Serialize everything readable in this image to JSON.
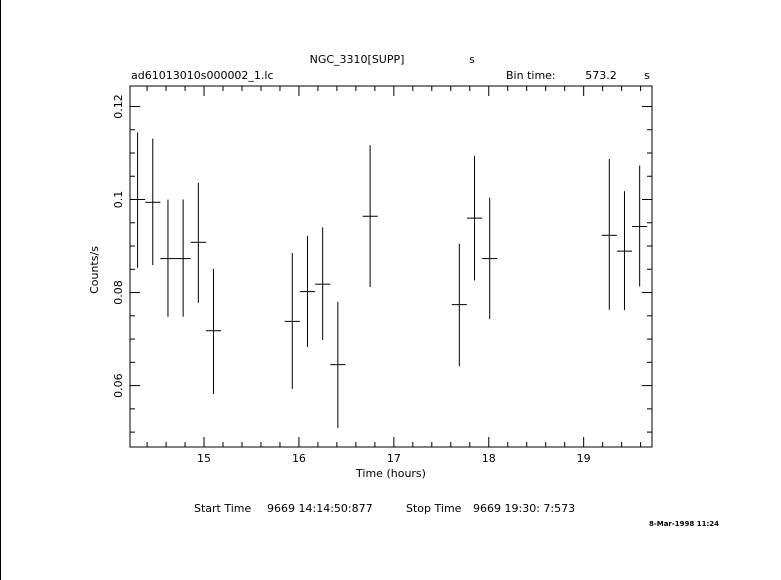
{
  "header": {
    "object": "NGC_3310[SUPP]",
    "object_unit": "s",
    "file": "ad61013010s000002_1.lc",
    "bin_label": "Bin time:",
    "bin_value": "573.2",
    "bin_unit": "s"
  },
  "footer": {
    "start_label": "Start Time",
    "start_value": "9669  14:14:50:877",
    "stop_label": "Stop Time",
    "stop_value": "9669  19:30:  7:573",
    "date": "8-Mar-1998 11:24"
  },
  "chart_data": {
    "type": "scatter",
    "xlabel": "Time (hours)",
    "ylabel": "Counts/s",
    "xlim": [
      14.22,
      19.72
    ],
    "ylim": [
      0.0468,
      0.1244
    ],
    "x_ticks": [
      15,
      16,
      17,
      18,
      19
    ],
    "y_ticks": [
      0.06,
      0.08,
      0.1,
      0.12
    ],
    "x_tick_labels": [
      "15",
      "16",
      "17",
      "18",
      "19"
    ],
    "y_tick_labels": [
      "0.06",
      "0.08",
      "0.1",
      "0.12"
    ],
    "grid": false,
    "points": [
      {
        "x": 14.3,
        "y": 0.1,
        "xerr": 0.08,
        "yerr_low": 0.0853,
        "yerr_high": 0.1144
      },
      {
        "x": 14.46,
        "y": 0.0994,
        "xerr": 0.08,
        "yerr_low": 0.0859,
        "yerr_high": 0.1131
      },
      {
        "x": 14.62,
        "y": 0.0873,
        "xerr": 0.08,
        "yerr_low": 0.0748,
        "yerr_high": 0.1
      },
      {
        "x": 14.78,
        "y": 0.0873,
        "xerr": 0.08,
        "yerr_low": 0.0748,
        "yerr_high": 0.1
      },
      {
        "x": 14.94,
        "y": 0.0908,
        "xerr": 0.08,
        "yerr_low": 0.0778,
        "yerr_high": 0.1036
      },
      {
        "x": 15.1,
        "y": 0.0718,
        "xerr": 0.08,
        "yerr_low": 0.0582,
        "yerr_high": 0.0851
      },
      {
        "x": 15.93,
        "y": 0.0738,
        "xerr": 0.08,
        "yerr_low": 0.0593,
        "yerr_high": 0.0885
      },
      {
        "x": 16.09,
        "y": 0.0802,
        "xerr": 0.08,
        "yerr_low": 0.0683,
        "yerr_high": 0.0922
      },
      {
        "x": 16.25,
        "y": 0.0818,
        "xerr": 0.08,
        "yerr_low": 0.0698,
        "yerr_high": 0.094
      },
      {
        "x": 16.41,
        "y": 0.0645,
        "xerr": 0.08,
        "yerr_low": 0.0509,
        "yerr_high": 0.078
      },
      {
        "x": 16.75,
        "y": 0.0964,
        "xerr": 0.08,
        "yerr_low": 0.0812,
        "yerr_high": 0.1117
      },
      {
        "x": 17.69,
        "y": 0.0774,
        "xerr": 0.08,
        "yerr_low": 0.0642,
        "yerr_high": 0.0905
      },
      {
        "x": 17.85,
        "y": 0.096,
        "xerr": 0.08,
        "yerr_low": 0.0826,
        "yerr_high": 0.1094
      },
      {
        "x": 18.01,
        "y": 0.0873,
        "xerr": 0.08,
        "yerr_low": 0.0743,
        "yerr_high": 0.1004
      },
      {
        "x": 19.27,
        "y": 0.0923,
        "xerr": 0.08,
        "yerr_low": 0.0763,
        "yerr_high": 0.1087
      },
      {
        "x": 19.43,
        "y": 0.0889,
        "xerr": 0.08,
        "yerr_low": 0.0762,
        "yerr_high": 0.1018
      },
      {
        "x": 19.59,
        "y": 0.0942,
        "xerr": 0.08,
        "yerr_low": 0.0813,
        "yerr_high": 0.1073
      }
    ]
  }
}
